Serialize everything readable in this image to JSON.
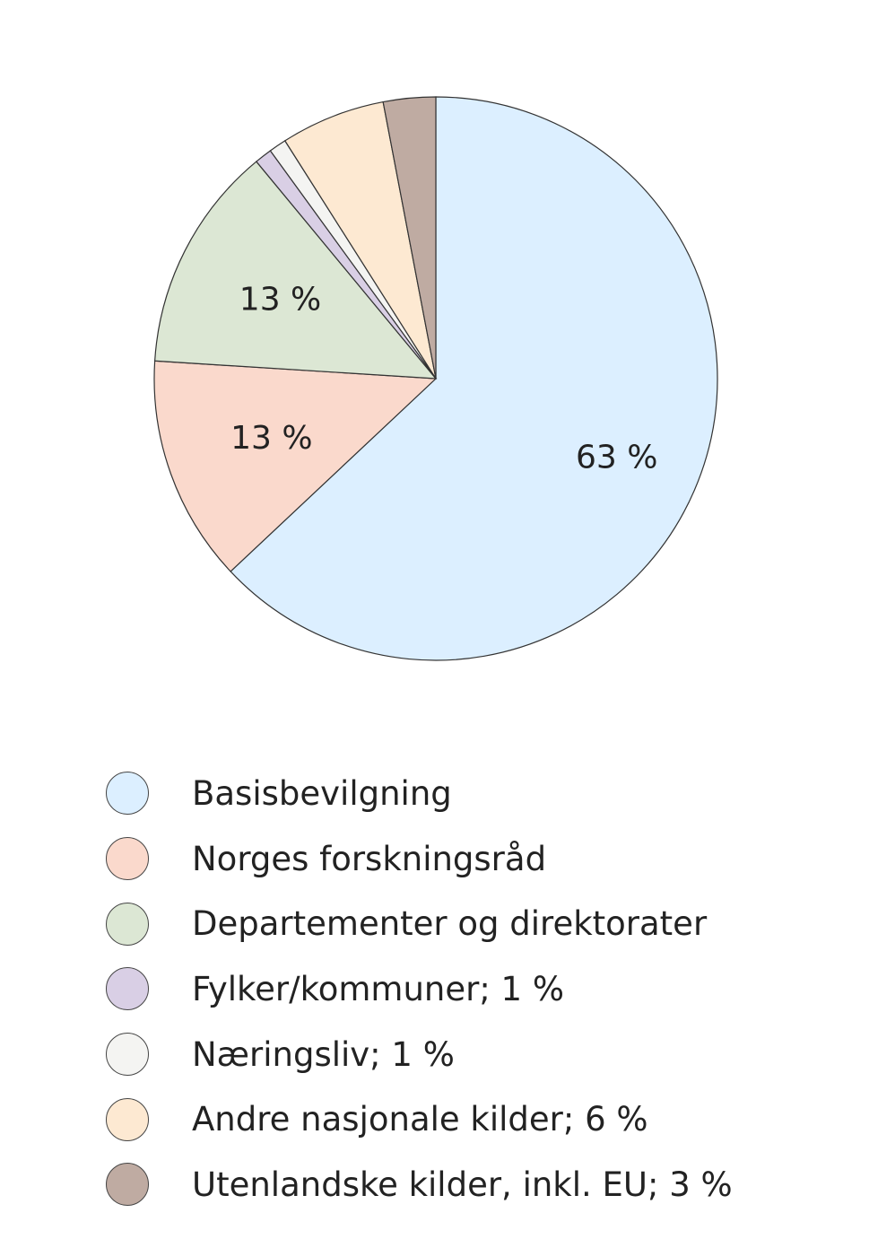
{
  "chart_data": {
    "type": "pie",
    "start": "top",
    "direction": "clockwise",
    "slices": [
      {
        "name": "Basisbevilgning",
        "value": 63,
        "color": "#dcefff",
        "pie_label": "63 %",
        "legend": "Basisbevilgning"
      },
      {
        "name": "Norges forskningsråd",
        "value": 13,
        "color": "#fad9cc",
        "pie_label": "13 %",
        "legend": "Norges forskningsråd"
      },
      {
        "name": "Departementer og direktorater",
        "value": 13,
        "color": "#dce7d4",
        "pie_label": "13 %",
        "legend": "Departementer og direktorater"
      },
      {
        "name": "Fylker/kommuner",
        "value": 1,
        "color": "#d9cfe5",
        "pie_label": null,
        "legend": "Fylker/kommuner; 1 %"
      },
      {
        "name": "Næringsliv",
        "value": 1,
        "color": "#f4f4f2",
        "pie_label": null,
        "legend": "Næringsliv; 1 %"
      },
      {
        "name": "Andre nasjonale kilder",
        "value": 6,
        "color": "#fde9d2",
        "pie_label": null,
        "legend": "Andre nasjonale kilder; 6 %"
      },
      {
        "name": "Utenlandske kilder, inkl. EU",
        "value": 3,
        "color": "#bfaba2",
        "pie_label": null,
        "legend": "Utenlandske kilder, inkl. EU; 3 %"
      }
    ],
    "legend_position": "bottom"
  }
}
